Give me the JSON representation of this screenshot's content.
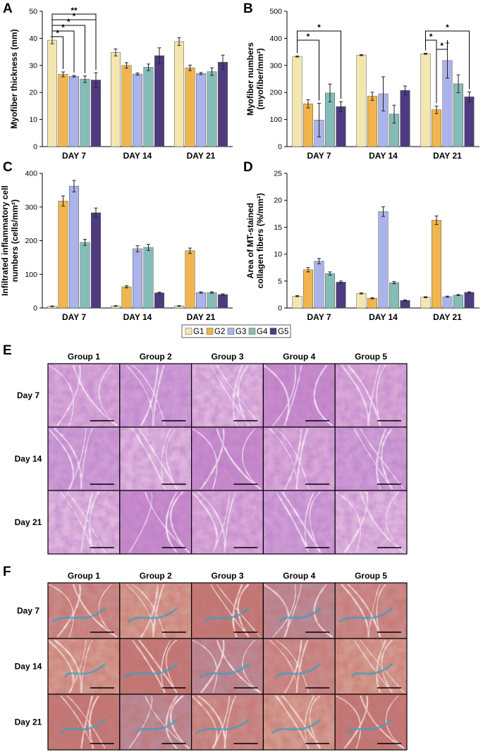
{
  "figure": {
    "legend": [
      "G1",
      "G2",
      "G3",
      "G4",
      "G5"
    ],
    "colors": {
      "G1": "#f3e6b0",
      "G2": "#f0b54e",
      "G3": "#aab4ea",
      "G4": "#86bcb8",
      "G5": "#4e3a7e"
    }
  },
  "chart_data": [
    {
      "panel": "A",
      "type": "bar",
      "ylabel": "Myofiber thickness (mm)",
      "categories": [
        "DAY 7",
        "DAY 14",
        "DAY 21"
      ],
      "ylim": [
        0,
        50
      ],
      "yticks": [
        0,
        10,
        20,
        30,
        40,
        50
      ],
      "series": [
        {
          "name": "G1",
          "values": [
            39.3,
            34.8,
            38.8
          ],
          "errors": [
            1.3,
            1.3,
            1.4
          ]
        },
        {
          "name": "G2",
          "values": [
            26.7,
            30.0,
            29.1
          ],
          "errors": [
            0.9,
            1.0,
            1.0
          ]
        },
        {
          "name": "G3",
          "values": [
            26.0,
            26.8,
            27.0
          ],
          "errors": [
            0.3,
            0.4,
            0.4
          ]
        },
        {
          "name": "G4",
          "values": [
            24.9,
            29.3,
            27.7
          ],
          "errors": [
            1.2,
            1.2,
            1.4
          ]
        },
        {
          "name": "G5",
          "values": [
            24.6,
            33.6,
            31.2
          ],
          "errors": [
            2.7,
            2.9,
            2.6
          ]
        }
      ],
      "significance": [
        {
          "from": "G1",
          "to": "G2",
          "group": "DAY 7",
          "label": "*"
        },
        {
          "from": "G1",
          "to": "G3",
          "group": "DAY 7",
          "label": "*"
        },
        {
          "from": "G1",
          "to": "G4",
          "group": "DAY 7",
          "label": "*"
        },
        {
          "from": "G1",
          "to": "G5",
          "group": "DAY 7",
          "label": "*"
        },
        {
          "from": "G1",
          "to": "G5",
          "group": "DAY 7",
          "label": "**"
        }
      ]
    },
    {
      "panel": "B",
      "type": "bar",
      "ylabel": "Myofiber numbers (myofiber/mm²)",
      "categories": [
        "DAY 7",
        "DAY 14",
        "DAY 21"
      ],
      "ylim": [
        0,
        500
      ],
      "yticks": [
        0,
        100,
        200,
        300,
        400,
        500
      ],
      "series": [
        {
          "name": "G1",
          "values": [
            333,
            338,
            343
          ],
          "errors": [
            2,
            2,
            2
          ]
        },
        {
          "name": "G2",
          "values": [
            158,
            186,
            136
          ],
          "errors": [
            15,
            15,
            14
          ]
        },
        {
          "name": "G3",
          "values": [
            98,
            195,
            318
          ],
          "errors": [
            62,
            63,
            65
          ]
        },
        {
          "name": "G4",
          "values": [
            198,
            120,
            232
          ],
          "errors": [
            33,
            33,
            33
          ]
        },
        {
          "name": "G5",
          "values": [
            148,
            208,
            184
          ],
          "errors": [
            18,
            16,
            18
          ]
        }
      ],
      "significance": [
        {
          "from": "G1",
          "to": "G5",
          "group": "DAY 7",
          "label": "*"
        },
        {
          "from": "G1",
          "to": "G3",
          "group": "DAY 7",
          "label": "*"
        },
        {
          "from": "G1",
          "to": "G5",
          "group": "DAY 21",
          "label": "*"
        },
        {
          "from": "G1",
          "to": "G2",
          "group": "DAY 21",
          "label": "*"
        },
        {
          "from": "G2",
          "to": "G3",
          "group": "DAY 21",
          "label": "*"
        }
      ]
    },
    {
      "panel": "C",
      "type": "bar",
      "ylabel": "Infiltrated inflammatory cell numbers (cells/mm²)",
      "categories": [
        "DAY 7",
        "DAY 14",
        "DAY 21"
      ],
      "ylim": [
        0,
        400
      ],
      "yticks": [
        0,
        100,
        200,
        300,
        400
      ],
      "series": [
        {
          "name": "G1",
          "values": [
            5,
            6,
            6
          ],
          "errors": [
            1,
            1,
            1
          ]
        },
        {
          "name": "G2",
          "values": [
            318,
            63,
            170
          ],
          "errors": [
            15,
            3,
            8
          ]
        },
        {
          "name": "G3",
          "values": [
            362,
            176,
            46
          ],
          "errors": [
            17,
            9,
            2
          ]
        },
        {
          "name": "G4",
          "values": [
            195,
            180,
            46
          ],
          "errors": [
            9,
            9,
            2
          ]
        },
        {
          "name": "G5",
          "values": [
            283,
            45,
            40
          ],
          "errors": [
            14,
            2,
            2
          ]
        }
      ],
      "significance": []
    },
    {
      "panel": "D",
      "type": "bar",
      "ylabel": "Area of MT-stained collagen fibers (%/mm²)",
      "categories": [
        "DAY 7",
        "DAY 14",
        "DAY 21"
      ],
      "ylim": [
        0,
        25
      ],
      "yticks": [
        0,
        5,
        10,
        15,
        20,
        25
      ],
      "series": [
        {
          "name": "G1",
          "values": [
            2.2,
            2.7,
            2.0
          ],
          "errors": [
            0.1,
            0.1,
            0.1
          ]
        },
        {
          "name": "G2",
          "values": [
            7.1,
            1.8,
            16.3
          ],
          "errors": [
            0.4,
            0.1,
            0.8
          ]
        },
        {
          "name": "G3",
          "values": [
            8.7,
            17.9,
            2.1
          ],
          "errors": [
            0.5,
            0.9,
            0.1
          ]
        },
        {
          "name": "G4",
          "values": [
            6.4,
            4.7,
            2.4
          ],
          "errors": [
            0.3,
            0.2,
            0.1
          ]
        },
        {
          "name": "G5",
          "values": [
            4.8,
            1.4,
            2.9
          ],
          "errors": [
            0.2,
            0.1,
            0.1
          ]
        }
      ],
      "significance": []
    }
  ],
  "he_panel": {
    "letter": "E",
    "columns": [
      "Group 1",
      "Group 2",
      "Group 3",
      "Group 4",
      "Group 5"
    ],
    "rows": [
      "Day 7",
      "Day 14",
      "Day 21"
    ],
    "stain": "H&E"
  },
  "mt_panel": {
    "letter": "F",
    "columns": [
      "Group 1",
      "Group 2",
      "Group 3",
      "Group 4",
      "Group 5"
    ],
    "rows": [
      "Day 7",
      "Day 14",
      "Day 21"
    ],
    "stain": "Masson's trichrome"
  },
  "panel_letters": {
    "A": "A",
    "B": "B",
    "C": "C",
    "D": "D"
  },
  "ylabels": {
    "A": [
      "Myofiber thickness (mm)"
    ],
    "B": [
      "Myofiber numbers",
      "(myofiber/mm²)"
    ],
    "C": [
      "Infiltrated inflammatory cell",
      "numbers (cells/mm²)"
    ],
    "D": [
      "Area of MT-stained",
      "collagen fibers (%/mm²)"
    ]
  }
}
